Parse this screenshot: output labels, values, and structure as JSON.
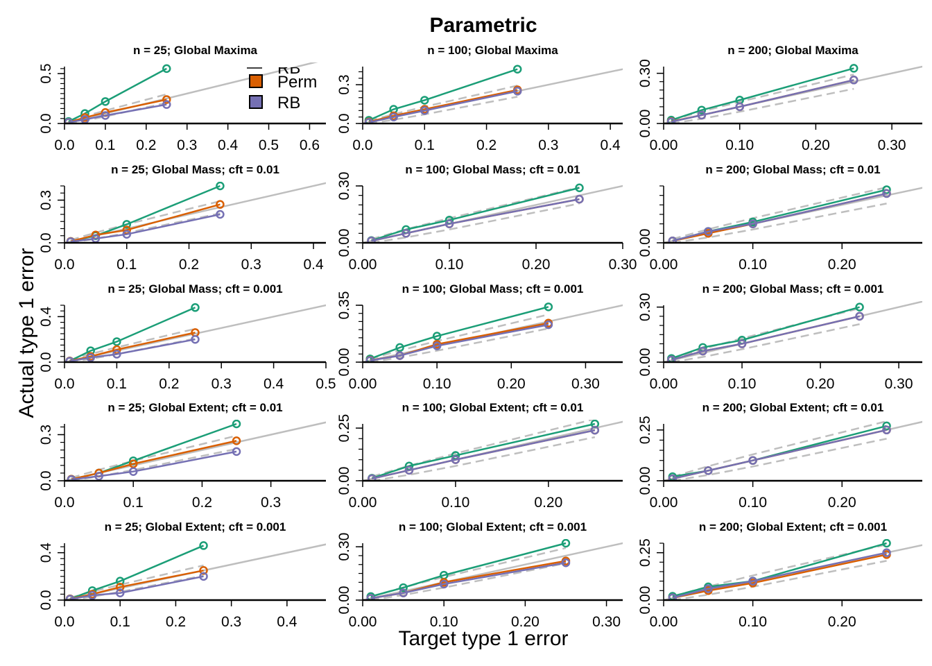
{
  "figure": {
    "title": "Parametric",
    "xlabel": "Target type 1 error",
    "ylabel": "Actual type 1 error"
  },
  "legend": {
    "placement": "inside top-right of first panel",
    "items": [
      {
        "label": "RB",
        "color": "#1B9E77",
        "partially_clipped": true
      },
      {
        "label": "Perm",
        "color": "#D95F02"
      },
      {
        "label": "RB",
        "color": "#7570B3"
      }
    ]
  },
  "colors": {
    "param": "#1B9E77",
    "perm": "#D95F02",
    "rb": "#7570B3",
    "reference": "#BEBEBE"
  },
  "chart_data": [
    {
      "type": "line",
      "title": "n = 25; Global Maxima",
      "x": [
        0.01,
        0.05,
        0.1,
        0.25
      ],
      "xlim": [
        0,
        0.64
      ],
      "ylim": [
        0,
        0.57
      ],
      "xticks": [
        "0.0",
        "0.1",
        "0.2",
        "0.3",
        "0.4",
        "0.5",
        "0.6"
      ],
      "yticks": [
        "0.0",
        "0.5"
      ],
      "series": [
        {
          "values": [
            0.02,
            0.1,
            0.22,
            0.55
          ]
        },
        {
          "values": [
            0.01,
            0.06,
            0.11,
            0.24
          ]
        },
        {
          "values": [
            0.01,
            0.04,
            0.08,
            0.19
          ]
        }
      ]
    },
    {
      "type": "line",
      "title": "n = 100; Global Maxima",
      "x": [
        0.01,
        0.05,
        0.1,
        0.25
      ],
      "xlim": [
        0,
        0.42
      ],
      "ylim": [
        0,
        0.44
      ],
      "xticks": [
        "0.0",
        "0.1",
        "0.2",
        "0.3",
        "0.4"
      ],
      "yticks": [
        "0.0",
        "0.3"
      ],
      "series": [
        {
          "values": [
            0.025,
            0.11,
            0.18,
            0.42
          ]
        },
        {
          "values": [
            0.012,
            0.06,
            0.11,
            0.26
          ]
        },
        {
          "values": [
            0.008,
            0.05,
            0.1,
            0.25
          ]
        }
      ]
    },
    {
      "type": "line",
      "title": "n = 200; Global Maxima",
      "x": [
        0.01,
        0.05,
        0.1,
        0.25
      ],
      "xlim": [
        0,
        0.34
      ],
      "ylim": [
        0,
        0.34
      ],
      "xticks": [
        "0.00",
        "0.10",
        "0.20",
        "0.30"
      ],
      "yticks": [
        "0.00",
        "0.30"
      ],
      "series": [
        {
          "values": [
            0.02,
            0.08,
            0.14,
            0.33
          ]
        },
        {
          "values": [
            0.012,
            0.05,
            0.1,
            0.26
          ]
        },
        {
          "values": [
            0.01,
            0.05,
            0.1,
            0.26
          ]
        }
      ]
    },
    {
      "type": "line",
      "title": "n = 25; Global Mass; cft = 0.01",
      "x": [
        0.01,
        0.05,
        0.1,
        0.25
      ],
      "xlim": [
        0,
        0.42
      ],
      "ylim": [
        0,
        0.4
      ],
      "xticks": [
        "0.0",
        "0.1",
        "0.2",
        "0.3",
        "0.4"
      ],
      "yticks": [
        "0.0",
        "0.3"
      ],
      "series": [
        {
          "values": [
            0.01,
            0.05,
            0.13,
            0.4
          ]
        },
        {
          "values": [
            0.01,
            0.055,
            0.09,
            0.27
          ]
        },
        {
          "values": [
            0.008,
            0.03,
            0.06,
            0.2
          ]
        }
      ]
    },
    {
      "type": "line",
      "title": "n = 100; Global Mass; cft = 0.01",
      "x": [
        0.01,
        0.05,
        0.1,
        0.25
      ],
      "xlim": [
        0,
        0.3
      ],
      "ylim": [
        0,
        0.3
      ],
      "xticks": [
        "0.00",
        "0.10",
        "0.20",
        "0.30"
      ],
      "yticks": [
        "0.00",
        "0.30"
      ],
      "series": [
        {
          "values": [
            0.012,
            0.07,
            0.12,
            0.29
          ]
        },
        {
          "values": [
            0.01,
            0.05,
            0.1,
            0.23
          ]
        },
        {
          "values": [
            0.01,
            0.05,
            0.1,
            0.23
          ]
        }
      ]
    },
    {
      "type": "line",
      "title": "n = 200; Global Mass; cft = 0.01",
      "x": [
        0.01,
        0.05,
        0.1,
        0.25
      ],
      "xlim": [
        0,
        0.29
      ],
      "ylim": [
        0,
        0.3
      ],
      "xticks": [
        "0.00",
        "0.10",
        "0.20"
      ],
      "yticks": [
        "0.00"
      ],
      "series": [
        {
          "values": [
            0.01,
            0.06,
            0.11,
            0.28
          ]
        },
        {
          "values": [
            0.01,
            0.05,
            0.1,
            0.26
          ]
        },
        {
          "values": [
            0.01,
            0.06,
            0.1,
            0.26
          ]
        }
      ]
    },
    {
      "type": "line",
      "title": "n = 25; Global Mass; cft = 0.001",
      "x": [
        0.01,
        0.05,
        0.1,
        0.25
      ],
      "xlim": [
        0,
        0.5
      ],
      "ylim": [
        0,
        0.5
      ],
      "xticks": [
        "0.0",
        "0.1",
        "0.2",
        "0.3",
        "0.4",
        "0.5"
      ],
      "yticks": [
        "0.0",
        "0.4"
      ],
      "series": [
        {
          "values": [
            0.01,
            0.1,
            0.18,
            0.48
          ]
        },
        {
          "values": [
            0.01,
            0.05,
            0.11,
            0.26
          ]
        },
        {
          "values": [
            0.008,
            0.04,
            0.07,
            0.2
          ]
        }
      ]
    },
    {
      "type": "line",
      "title": "n = 100; Global Mass; cft = 0.001",
      "x": [
        0.01,
        0.05,
        0.1,
        0.25
      ],
      "xlim": [
        0,
        0.35
      ],
      "ylim": [
        0,
        0.35
      ],
      "xticks": [
        "0.00",
        "0.10",
        "0.20",
        "0.30"
      ],
      "yticks": [
        "0.00",
        "0.35"
      ],
      "series": [
        {
          "values": [
            0.02,
            0.09,
            0.16,
            0.34
          ]
        },
        {
          "values": [
            0.012,
            0.04,
            0.11,
            0.24
          ]
        },
        {
          "values": [
            0.01,
            0.04,
            0.1,
            0.23
          ]
        }
      ]
    },
    {
      "type": "line",
      "title": "n = 200; Global Mass; cft = 0.001",
      "x": [
        0.01,
        0.05,
        0.1,
        0.25
      ],
      "xlim": [
        0,
        0.33
      ],
      "ylim": [
        0,
        0.31
      ],
      "xticks": [
        "0.00",
        "0.10",
        "0.20",
        "0.30"
      ],
      "yticks": [
        "0.00",
        "0.30"
      ],
      "series": [
        {
          "values": [
            0.02,
            0.08,
            0.12,
            0.3
          ]
        },
        {
          "values": [
            0.012,
            0.06,
            0.1,
            0.25
          ]
        },
        {
          "values": [
            0.012,
            0.06,
            0.1,
            0.25
          ]
        }
      ]
    },
    {
      "type": "line",
      "title": "n = 25; Global Extent; cft = 0.01",
      "x": [
        0.01,
        0.05,
        0.1,
        0.25
      ],
      "xlim": [
        0,
        0.38
      ],
      "ylim": [
        0,
        0.37
      ],
      "xticks": [
        "0.0",
        "0.1",
        "0.2",
        "0.3"
      ],
      "yticks": [
        "0.0",
        "0.3"
      ],
      "series": [
        {
          "values": [
            0.01,
            0.05,
            0.13,
            0.37
          ]
        },
        {
          "values": [
            0.01,
            0.05,
            0.11,
            0.26
          ]
        },
        {
          "values": [
            0.008,
            0.03,
            0.06,
            0.19
          ]
        }
      ]
    },
    {
      "type": "line",
      "title": "n = 100; Global Extent; cft = 0.01",
      "x": [
        0.01,
        0.05,
        0.1,
        0.25
      ],
      "xlim": [
        0,
        0.28
      ],
      "ylim": [
        0,
        0.27
      ],
      "xticks": [
        "0.00",
        "0.10",
        "0.20"
      ],
      "yticks": [
        "0.00",
        "0.25"
      ],
      "series": [
        {
          "values": [
            0.012,
            0.07,
            0.12,
            0.27
          ]
        },
        {
          "values": [
            0.01,
            0.05,
            0.1,
            0.24
          ]
        },
        {
          "values": [
            0.01,
            0.05,
            0.1,
            0.24
          ]
        }
      ]
    },
    {
      "type": "line",
      "title": "n = 200; Global Extent; cft = 0.01",
      "x": [
        0.01,
        0.05,
        0.1,
        0.25
      ],
      "xlim": [
        0,
        0.29
      ],
      "ylim": [
        0,
        0.28
      ],
      "xticks": [
        "0.00",
        "0.10",
        "0.20"
      ],
      "yticks": [
        "0.00",
        "0.25"
      ],
      "series": [
        {
          "values": [
            0.02,
            0.05,
            0.1,
            0.27
          ]
        },
        {
          "values": [
            0.01,
            0.05,
            0.1,
            0.25
          ]
        },
        {
          "values": [
            0.01,
            0.05,
            0.1,
            0.25
          ]
        }
      ]
    },
    {
      "type": "line",
      "title": "n = 25; Global Extent; cft = 0.001",
      "x": [
        0.01,
        0.05,
        0.1,
        0.25
      ],
      "xlim": [
        0,
        0.47
      ],
      "ylim": [
        0,
        0.48
      ],
      "xticks": [
        "0.0",
        "0.1",
        "0.2",
        "0.3",
        "0.4"
      ],
      "yticks": [
        "0.0",
        "0.4"
      ],
      "series": [
        {
          "values": [
            0.01,
            0.08,
            0.16,
            0.46
          ]
        },
        {
          "values": [
            0.01,
            0.05,
            0.11,
            0.25
          ]
        },
        {
          "values": [
            0.008,
            0.04,
            0.06,
            0.2
          ]
        }
      ]
    },
    {
      "type": "line",
      "title": "n = 100; Global Extent; cft = 0.001",
      "x": [
        0.01,
        0.05,
        0.1,
        0.25
      ],
      "xlim": [
        0,
        0.32
      ],
      "ylim": [
        0,
        0.32
      ],
      "xticks": [
        "0.00",
        "0.10",
        "0.20",
        "0.30"
      ],
      "yticks": [
        "0.00",
        "0.30"
      ],
      "series": [
        {
          "values": [
            0.02,
            0.07,
            0.14,
            0.32
          ]
        },
        {
          "values": [
            0.01,
            0.04,
            0.1,
            0.22
          ]
        },
        {
          "values": [
            0.01,
            0.04,
            0.09,
            0.21
          ]
        }
      ]
    },
    {
      "type": "line",
      "title": "n = 200; Global Extent; cft = 0.001",
      "x": [
        0.01,
        0.05,
        0.1,
        0.25
      ],
      "xlim": [
        0,
        0.29
      ],
      "ylim": [
        0,
        0.3
      ],
      "xticks": [
        "0.00",
        "0.10",
        "0.20"
      ],
      "yticks": [
        "0.00",
        "0.25"
      ],
      "series": [
        {
          "values": [
            0.02,
            0.07,
            0.1,
            0.3
          ]
        },
        {
          "values": [
            0.012,
            0.05,
            0.09,
            0.24
          ]
        },
        {
          "values": [
            0.012,
            0.06,
            0.1,
            0.25
          ]
        }
      ]
    }
  ]
}
